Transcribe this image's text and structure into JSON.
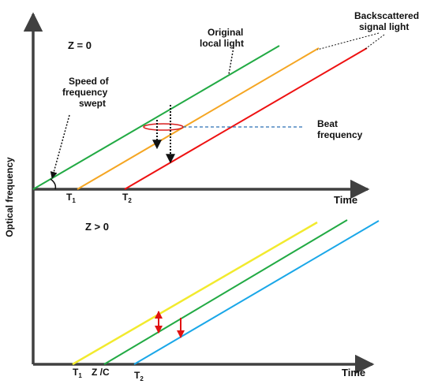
{
  "labels": {
    "y_axis": "Optical frequency",
    "time_top": "Time",
    "time_bottom": "Time",
    "z0": "Z = 0",
    "zpos": "Z > 0",
    "speed": [
      "Speed of",
      "frequency",
      "swept"
    ],
    "original": [
      "Original",
      "local light"
    ],
    "backscattered": [
      "Backscattered",
      "signal light"
    ],
    "beat": [
      "Beat",
      "frequency"
    ],
    "t1_top": "T",
    "t2_top": "T",
    "t1_bottom": "T",
    "t2_bottom": "T",
    "sub1": "1",
    "sub2": "2",
    "zc": "Z /C"
  },
  "colors": {
    "original_top": "#22aa44",
    "backscatter_1": "#f5a623",
    "backscatter_2": "#ee1111",
    "local_bottom": "#22aa44",
    "signal_1_bottom": "#f2ea2e",
    "signal_2_bottom": "#1aa7e8",
    "axis": "#404040",
    "beat_marker": "#d81e1e",
    "beat_line": "#2a6fb5"
  }
}
